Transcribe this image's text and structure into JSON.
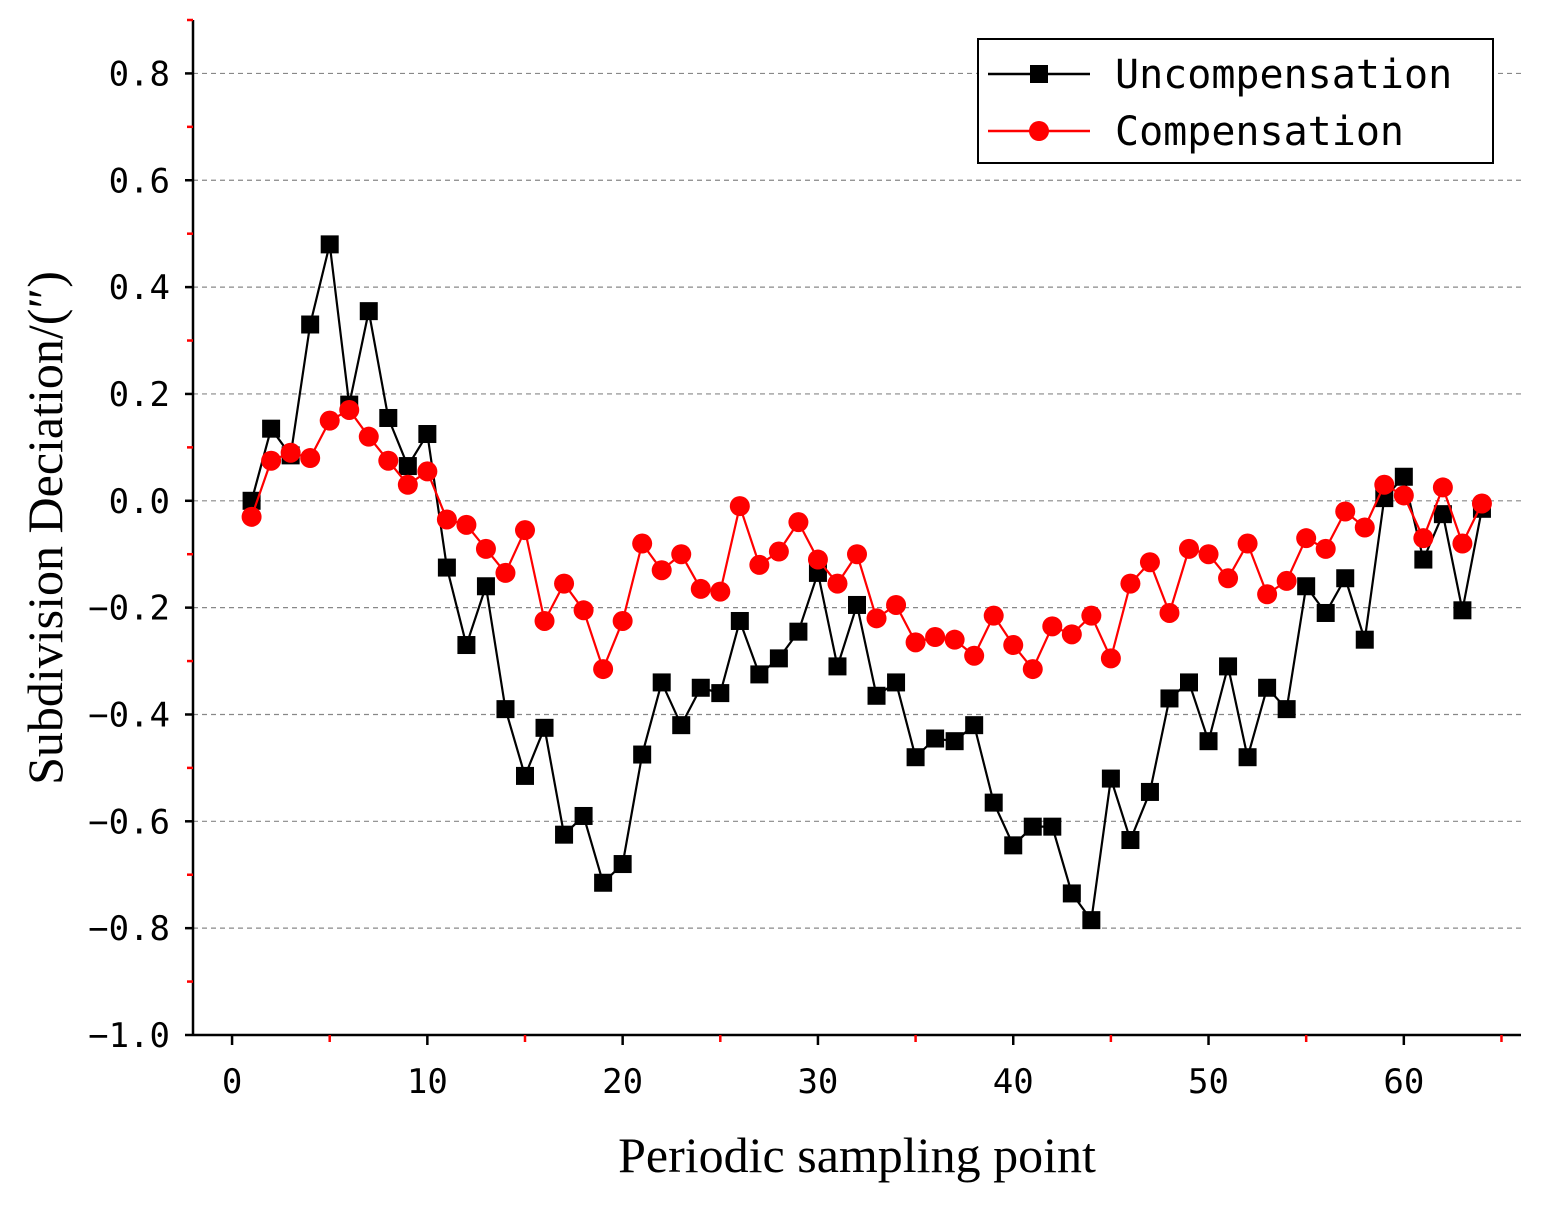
{
  "chart_data": {
    "type": "line",
    "title": "",
    "xlabel": "Periodic sampling point",
    "ylabel": "Subdivision Deciation/(″)",
    "xlim": [
      -2,
      66
    ],
    "ylim": [
      -1.0,
      0.9
    ],
    "x_ticks": [
      0,
      10,
      20,
      30,
      40,
      50,
      60
    ],
    "x_tick_labels": [
      "0",
      "10",
      "20",
      "30",
      "40",
      "50",
      "60"
    ],
    "y_ticks": [
      0.8,
      0.6,
      0.4,
      0.2,
      0.0,
      -0.2,
      -0.4,
      -0.6,
      -0.8,
      -1.0
    ],
    "y_tick_labels": [
      "0.8",
      "0.6",
      "0.4",
      "0.2",
      "0.0",
      "−0.2",
      "−0.4",
      "−0.6",
      "−0.8",
      "−1.0"
    ],
    "grid": "horizontal-dashed",
    "legend_position": "top-right",
    "x": [
      1,
      2,
      3,
      4,
      5,
      6,
      7,
      8,
      9,
      10,
      11,
      12,
      13,
      14,
      15,
      16,
      17,
      18,
      19,
      20,
      21,
      22,
      23,
      24,
      25,
      26,
      27,
      28,
      29,
      30,
      31,
      32,
      33,
      34,
      35,
      36,
      37,
      38,
      39,
      40,
      41,
      42,
      43,
      44,
      45,
      46,
      47,
      48,
      49,
      50,
      51,
      52,
      53,
      54,
      55,
      56,
      57,
      58,
      59,
      60,
      61,
      62,
      63,
      64
    ],
    "series": [
      {
        "name": "Uncompensation",
        "color": "#000000",
        "marker": "square",
        "values": [
          0.0,
          0.135,
          0.085,
          0.33,
          0.48,
          0.18,
          0.355,
          0.155,
          0.065,
          0.125,
          -0.125,
          -0.27,
          -0.16,
          -0.39,
          -0.515,
          -0.425,
          -0.625,
          -0.59,
          -0.715,
          -0.68,
          -0.475,
          -0.34,
          -0.42,
          -0.35,
          -0.36,
          -0.225,
          -0.325,
          -0.295,
          -0.245,
          -0.135,
          -0.31,
          -0.195,
          -0.365,
          -0.34,
          -0.48,
          -0.445,
          -0.45,
          -0.42,
          -0.565,
          -0.645,
          -0.61,
          -0.61,
          -0.735,
          -0.785,
          -0.52,
          -0.635,
          -0.545,
          -0.37,
          -0.34,
          -0.45,
          -0.31,
          -0.48,
          -0.35,
          -0.39,
          -0.16,
          -0.21,
          -0.145,
          -0.26,
          0.005,
          0.045,
          -0.11,
          -0.025,
          -0.205,
          -0.015
        ]
      },
      {
        "name": "Compensation",
        "color": "#ff0000",
        "marker": "circle",
        "values": [
          -0.03,
          0.075,
          0.09,
          0.08,
          0.15,
          0.17,
          0.12,
          0.075,
          0.03,
          0.055,
          -0.035,
          -0.045,
          -0.09,
          -0.135,
          -0.055,
          -0.225,
          -0.155,
          -0.205,
          -0.315,
          -0.225,
          -0.08,
          -0.13,
          -0.1,
          -0.165,
          -0.17,
          -0.01,
          -0.12,
          -0.095,
          -0.04,
          -0.11,
          -0.155,
          -0.1,
          -0.22,
          -0.195,
          -0.265,
          -0.255,
          -0.26,
          -0.29,
          -0.215,
          -0.27,
          -0.315,
          -0.235,
          -0.25,
          -0.215,
          -0.295,
          -0.155,
          -0.115,
          -0.21,
          -0.09,
          -0.1,
          -0.145,
          -0.08,
          -0.175,
          -0.15,
          -0.07,
          -0.09,
          -0.02,
          -0.05,
          0.03,
          0.01,
          -0.07,
          0.025,
          -0.08,
          -0.005
        ]
      }
    ]
  }
}
